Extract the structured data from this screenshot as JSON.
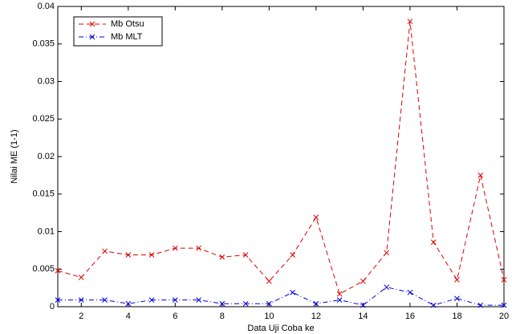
{
  "chart_data": {
    "type": "line",
    "x_label": "Data Uji Coba ke",
    "y_label": "Nilai ME (1-1)",
    "x": [
      1,
      2,
      3,
      4,
      5,
      6,
      7,
      8,
      9,
      10,
      11,
      12,
      13,
      14,
      15,
      16,
      17,
      18,
      19,
      20
    ],
    "series": [
      {
        "name": "Mb Otsu",
        "color": "#e00000",
        "dash": "6,4",
        "values": [
          0.0048,
          0.0039,
          0.0074,
          0.0069,
          0.0069,
          0.0078,
          0.0078,
          0.0066,
          0.0069,
          0.0034,
          0.0069,
          0.0119,
          0.0017,
          0.0034,
          0.0072,
          0.038,
          0.0086,
          0.0036,
          0.0175,
          0.0036
        ]
      },
      {
        "name": "Mb MLT",
        "color": "#0000e0",
        "dash": "6,3,1,3",
        "values": [
          0.0009,
          0.0009,
          0.0009,
          0.0004,
          0.0009,
          0.0009,
          0.0009,
          0.0004,
          0.0004,
          0.0004,
          0.0019,
          0.0004,
          0.0009,
          0.0002,
          0.0026,
          0.0019,
          0.0002,
          0.0011,
          0.0002,
          0.0002
        ]
      }
    ],
    "xlim": [
      1,
      20
    ],
    "xticks": [
      2,
      4,
      6,
      8,
      10,
      12,
      14,
      16,
      18,
      20
    ],
    "ylim": [
      0,
      0.04
    ],
    "yticks": [
      0,
      0.005,
      0.01,
      0.015,
      0.02,
      0.025,
      0.03,
      0.035,
      0.04
    ],
    "legend": "top-left",
    "grid": false
  }
}
